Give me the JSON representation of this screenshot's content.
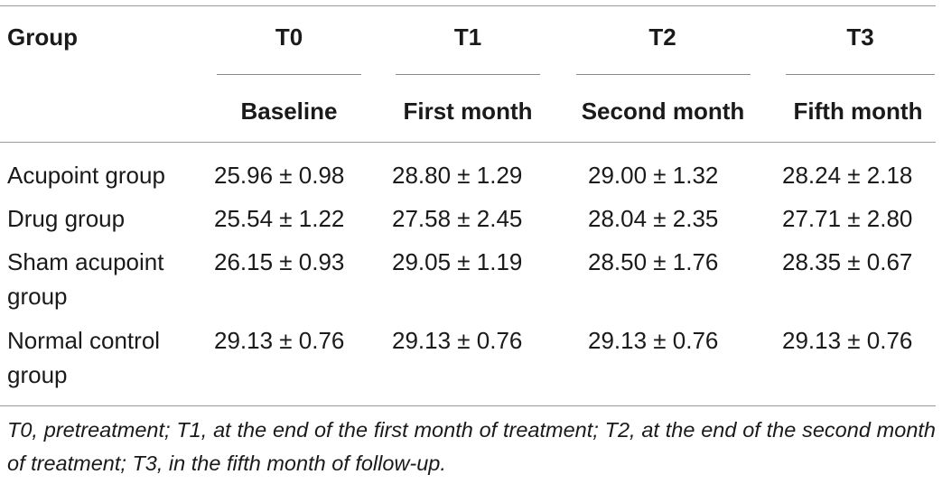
{
  "table": {
    "header": {
      "group_label": "Group",
      "columns": [
        {
          "time": "T0",
          "period": "Baseline"
        },
        {
          "time": "T1",
          "period": "First month"
        },
        {
          "time": "T2",
          "period": "Second month"
        },
        {
          "time": "T3",
          "period": "Fifth month"
        }
      ]
    },
    "rows": [
      {
        "group_lines": [
          "Acupoint group"
        ],
        "values": [
          "25.96 ± 0.98",
          "28.80 ± 1.29",
          "29.00 ± 1.32",
          "28.24 ± 2.18"
        ]
      },
      {
        "group_lines": [
          "Drug group"
        ],
        "values": [
          "25.54 ± 1.22",
          "27.58 ± 2.45",
          "28.04 ± 2.35",
          "27.71 ± 2.80"
        ]
      },
      {
        "group_lines": [
          "Sham acupoint",
          "group"
        ],
        "values": [
          "26.15 ± 0.93",
          "29.05 ± 1.19",
          "28.50 ± 1.76",
          "28.35 ± 0.67"
        ]
      },
      {
        "group_lines": [
          "Normal control",
          "group"
        ],
        "values": [
          "29.13 ± 0.76",
          "29.13 ± 0.76",
          "29.13 ± 0.76",
          "29.13 ± 0.76"
        ]
      }
    ],
    "footnote": "T0, pretreatment; T1, at the end of the first month of treatment; T2, at the end of the second month of treatment; T3, in the fifth month of follow-up."
  }
}
